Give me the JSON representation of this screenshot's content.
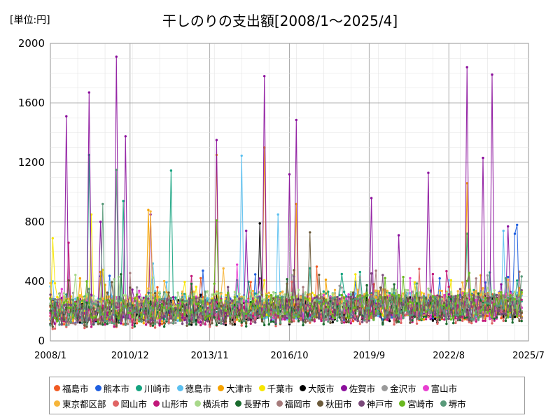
{
  "unit_label": "[単位:円]",
  "chart_data": {
    "type": "line",
    "title": "干しのりの支出額[2008/1～2025/4]",
    "x_start": "2008-01",
    "x_end": "2025-04",
    "xlim": [
      "2008-01",
      "2025-07"
    ],
    "x_ticks": [
      "2008/1",
      "2010/12",
      "2013/11",
      "2016/10",
      "2019/9",
      "2022/8",
      "2025/7"
    ],
    "ylim": [
      0,
      2000
    ],
    "y_ticks": [
      0,
      400,
      800,
      1200,
      1600,
      2000
    ],
    "grid": true,
    "legend_position": "bottom",
    "series": [
      {
        "name": "福島市",
        "color": "#f15a22",
        "base": 190,
        "spikes": []
      },
      {
        "name": "熊本市",
        "color": "#1f5fe0",
        "base": 200,
        "spikes": [
          [
            "2025-02",
            780
          ],
          [
            "2025-01",
            720
          ]
        ]
      },
      {
        "name": "川崎市",
        "color": "#14a37f",
        "base": 220,
        "spikes": [
          [
            "2009-06",
            1250
          ],
          [
            "2012-06",
            1145
          ],
          [
            "2010-09",
            940
          ],
          [
            "2023-04",
            720
          ]
        ]
      },
      {
        "name": "徳島市",
        "color": "#5bc0f0",
        "base": 210,
        "spikes": [
          [
            "2015-01",
            1245
          ],
          [
            "2016-05",
            850
          ],
          [
            "2024-08",
            740
          ]
        ]
      },
      {
        "name": "大津市",
        "color": "#f5a200",
        "base": 200,
        "spikes": [
          [
            "2015-11",
            1300
          ],
          [
            "2014-02",
            1250
          ],
          [
            "2023-04",
            1060
          ],
          [
            "2017-01",
            920
          ],
          [
            "2011-08",
            880
          ]
        ]
      },
      {
        "name": "千葉市",
        "color": "#f7e600",
        "base": 220,
        "spikes": [
          [
            "2008-02",
            690
          ],
          [
            "2009-07",
            850
          ]
        ]
      },
      {
        "name": "大阪市",
        "color": "#000000",
        "base": 180,
        "spikes": [
          [
            "2015-09",
            790
          ]
        ]
      },
      {
        "name": "佐賀市",
        "color": "#8b0f9c",
        "base": 200,
        "spikes": [
          [
            "2010-06",
            1910
          ],
          [
            "2015-11",
            1780
          ],
          [
            "2023-04",
            1840
          ],
          [
            "2024-03",
            1790
          ],
          [
            "2009-06",
            1670
          ],
          [
            "2008-08",
            1510
          ],
          [
            "2017-01",
            1485
          ],
          [
            "2010-10",
            1375
          ],
          [
            "2014-02",
            1350
          ],
          [
            "2023-11",
            1230
          ],
          [
            "2021-11",
            1130
          ],
          [
            "2016-10",
            1120
          ],
          [
            "2019-10",
            960
          ],
          [
            "2011-09",
            850
          ],
          [
            "2009-11",
            800
          ],
          [
            "2015-03",
            740
          ],
          [
            "2024-10",
            770
          ],
          [
            "2020-10",
            710
          ]
        ]
      },
      {
        "name": "金沢市",
        "color": "#9a9a9a",
        "base": 190,
        "spikes": []
      },
      {
        "name": "富山市",
        "color": "#e83fd0",
        "base": 200,
        "spikes": []
      },
      {
        "name": "東京都区部",
        "color": "#f6b53a",
        "base": 230,
        "spikes": [
          [
            "2011-09",
            870
          ]
        ]
      },
      {
        "name": "岡山市",
        "color": "#e06464",
        "base": 170,
        "spikes": []
      },
      {
        "name": "山形市",
        "color": "#c2187a",
        "base": 180,
        "spikes": [
          [
            "2008-09",
            660
          ]
        ]
      },
      {
        "name": "横浜市",
        "color": "#a8d88a",
        "base": 230,
        "spikes": []
      },
      {
        "name": "長野市",
        "color": "#1a6b2e",
        "base": 170,
        "spikes": []
      },
      {
        "name": "福岡市",
        "color": "#a67b7b",
        "base": 190,
        "spikes": []
      },
      {
        "name": "秋田市",
        "color": "#6b5a3a",
        "base": 180,
        "spikes": [
          [
            "2017-07",
            730
          ]
        ]
      },
      {
        "name": "神戸市",
        "color": "#7a4a7a",
        "base": 190,
        "spikes": []
      },
      {
        "name": "宮崎市",
        "color": "#6ab820",
        "base": 200,
        "spikes": [
          [
            "2014-02",
            810
          ]
        ]
      },
      {
        "name": "堺市",
        "color": "#5a9a7a",
        "base": 190,
        "spikes": [
          [
            "2010-06",
            1150
          ],
          [
            "2009-12",
            920
          ]
        ]
      }
    ]
  }
}
